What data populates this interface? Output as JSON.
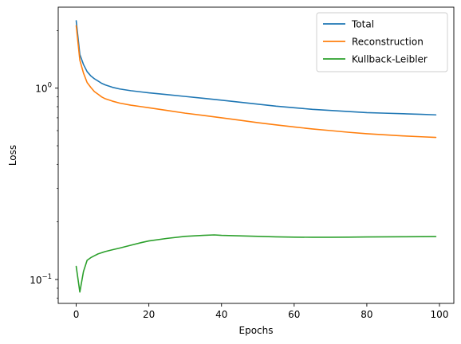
{
  "chart_data": {
    "type": "line",
    "title": "",
    "xlabel": "Epochs",
    "ylabel": "Loss",
    "xlim": [
      -4.95,
      103.95
    ],
    "ylim": [
      0.075,
      2.65
    ],
    "yscale": "log",
    "grid": false,
    "legend_position": "top-right",
    "x_ticks": [
      {
        "value": 0,
        "label": "0"
      },
      {
        "value": 20,
        "label": "20"
      },
      {
        "value": 40,
        "label": "40"
      },
      {
        "value": 60,
        "label": "60"
      },
      {
        "value": 80,
        "label": "80"
      },
      {
        "value": 100,
        "label": "100"
      }
    ],
    "y_ticks": [
      {
        "value": 0.1,
        "base": "10",
        "exp": "−1"
      },
      {
        "value": 1,
        "base": "10",
        "exp": "0"
      }
    ],
    "series": [
      {
        "name": "Total",
        "color": "#1f77b4",
        "x": [
          0,
          1,
          2,
          3,
          4,
          5,
          6,
          7,
          8,
          10,
          12,
          15,
          18,
          20,
          25,
          30,
          35,
          40,
          45,
          50,
          55,
          60,
          65,
          70,
          75,
          80,
          85,
          90,
          95,
          99
        ],
        "y": [
          2.25,
          1.5,
          1.33,
          1.22,
          1.16,
          1.12,
          1.09,
          1.06,
          1.04,
          1.01,
          0.99,
          0.97,
          0.955,
          0.945,
          0.925,
          0.905,
          0.885,
          0.865,
          0.845,
          0.825,
          0.805,
          0.79,
          0.775,
          0.765,
          0.755,
          0.745,
          0.74,
          0.735,
          0.73,
          0.725
        ]
      },
      {
        "name": "Reconstruction",
        "color": "#ff7f0e",
        "x": [
          0,
          1,
          2,
          3,
          4,
          5,
          6,
          7,
          8,
          10,
          12,
          15,
          18,
          20,
          25,
          30,
          35,
          40,
          45,
          50,
          55,
          60,
          65,
          70,
          75,
          80,
          85,
          90,
          95,
          99
        ],
        "y": [
          2.12,
          1.4,
          1.2,
          1.07,
          1.01,
          0.96,
          0.93,
          0.9,
          0.88,
          0.855,
          0.835,
          0.815,
          0.8,
          0.79,
          0.765,
          0.74,
          0.72,
          0.7,
          0.68,
          0.66,
          0.643,
          0.627,
          0.612,
          0.6,
          0.588,
          0.578,
          0.57,
          0.563,
          0.557,
          0.553
        ]
      },
      {
        "name": "Kullback-Leibler",
        "color": "#2ca02c",
        "x": [
          0,
          1,
          2,
          3,
          4,
          5,
          6,
          8,
          10,
          12,
          15,
          18,
          20,
          25,
          30,
          35,
          38,
          40,
          45,
          50,
          55,
          60,
          65,
          70,
          75,
          80,
          85,
          90,
          95,
          99
        ],
        "y": [
          0.117,
          0.086,
          0.11,
          0.126,
          0.13,
          0.133,
          0.136,
          0.14,
          0.143,
          0.146,
          0.151,
          0.156,
          0.159,
          0.164,
          0.168,
          0.17,
          0.171,
          0.17,
          0.169,
          0.168,
          0.167,
          0.1665,
          0.1662,
          0.1662,
          0.1665,
          0.1668,
          0.167,
          0.1672,
          0.1675,
          0.1677
        ]
      }
    ]
  }
}
